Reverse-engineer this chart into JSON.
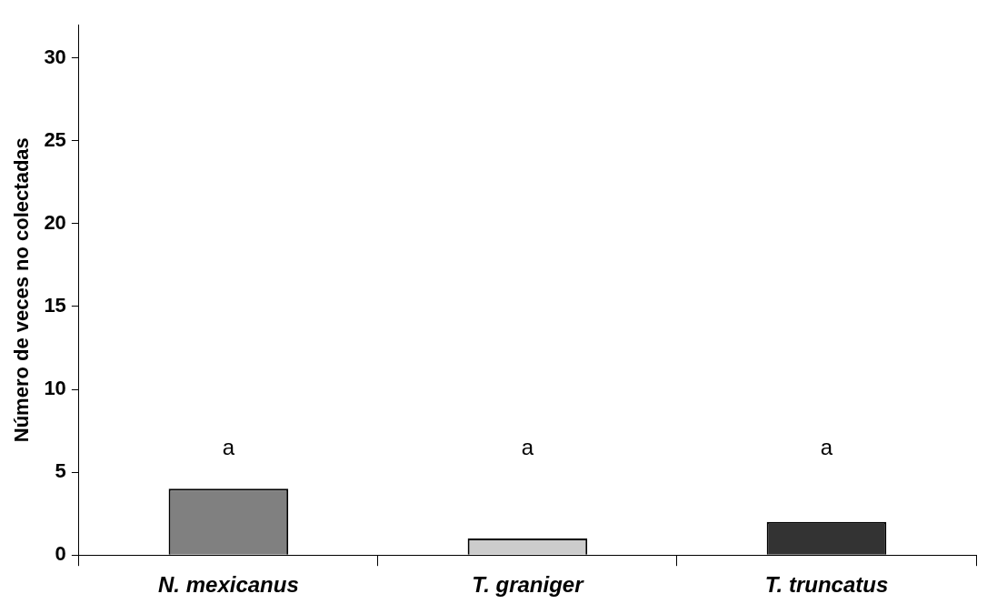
{
  "chart_data": {
    "type": "bar",
    "ylabel": "Número de veces no colectadas",
    "categories": [
      "N. mexicanus",
      "T. graniger",
      "T. truncatus"
    ],
    "values": [
      4,
      1,
      2
    ],
    "colors": [
      "#808080",
      "#cccccc",
      "#333333"
    ],
    "ylim": [
      0,
      32
    ],
    "yticks": [
      0,
      5,
      10,
      15,
      20,
      25,
      30
    ],
    "grid": false,
    "legend": false,
    "annotations": [
      "a",
      "a",
      "a"
    ]
  }
}
